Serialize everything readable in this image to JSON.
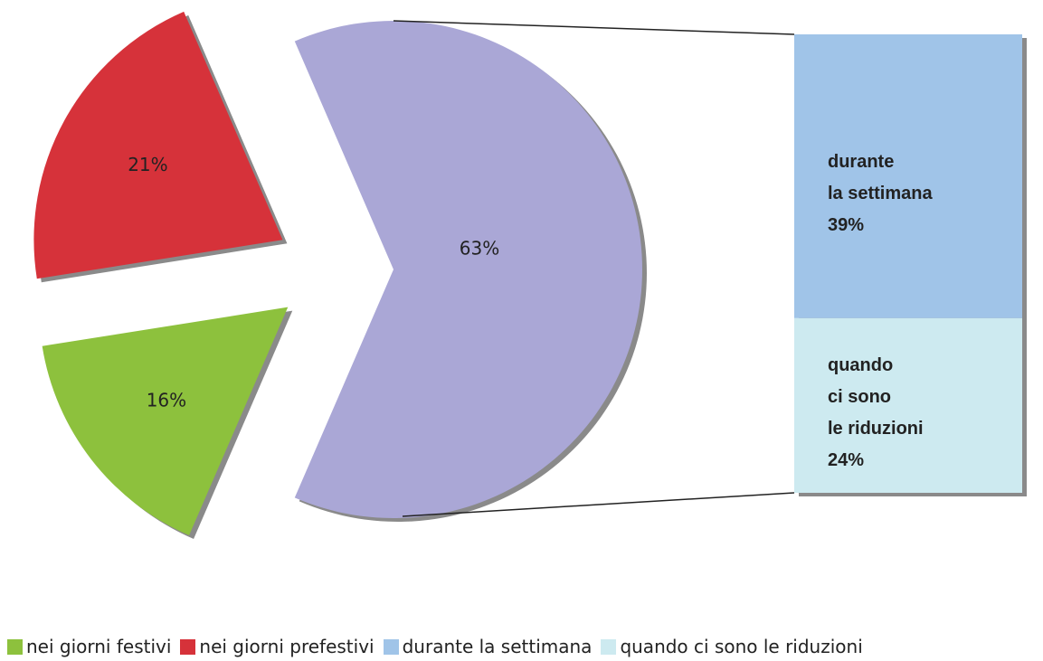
{
  "chart_data": {
    "type": "pie-of-bar",
    "pie": {
      "names": [
        "nei giorni festivi",
        "nei giorni prefestivi",
        null
      ],
      "values": [
        16,
        21,
        63
      ],
      "value_labels": [
        "16%",
        "21%",
        "63%"
      ],
      "colors": [
        "#8dc13d",
        "#d6323a",
        "#aaa7d6"
      ]
    },
    "bar": {
      "names": [
        "durante la settimana",
        "quando ci sono le riduzioni"
      ],
      "labels": [
        "durante\nla settimana",
        "quando\nci sono\nle riduzioni"
      ],
      "values": [
        39,
        24
      ],
      "value_labels": [
        "39%",
        "24%"
      ],
      "colors": [
        "#a0c4e8",
        "#cdeaf0"
      ]
    }
  }
}
